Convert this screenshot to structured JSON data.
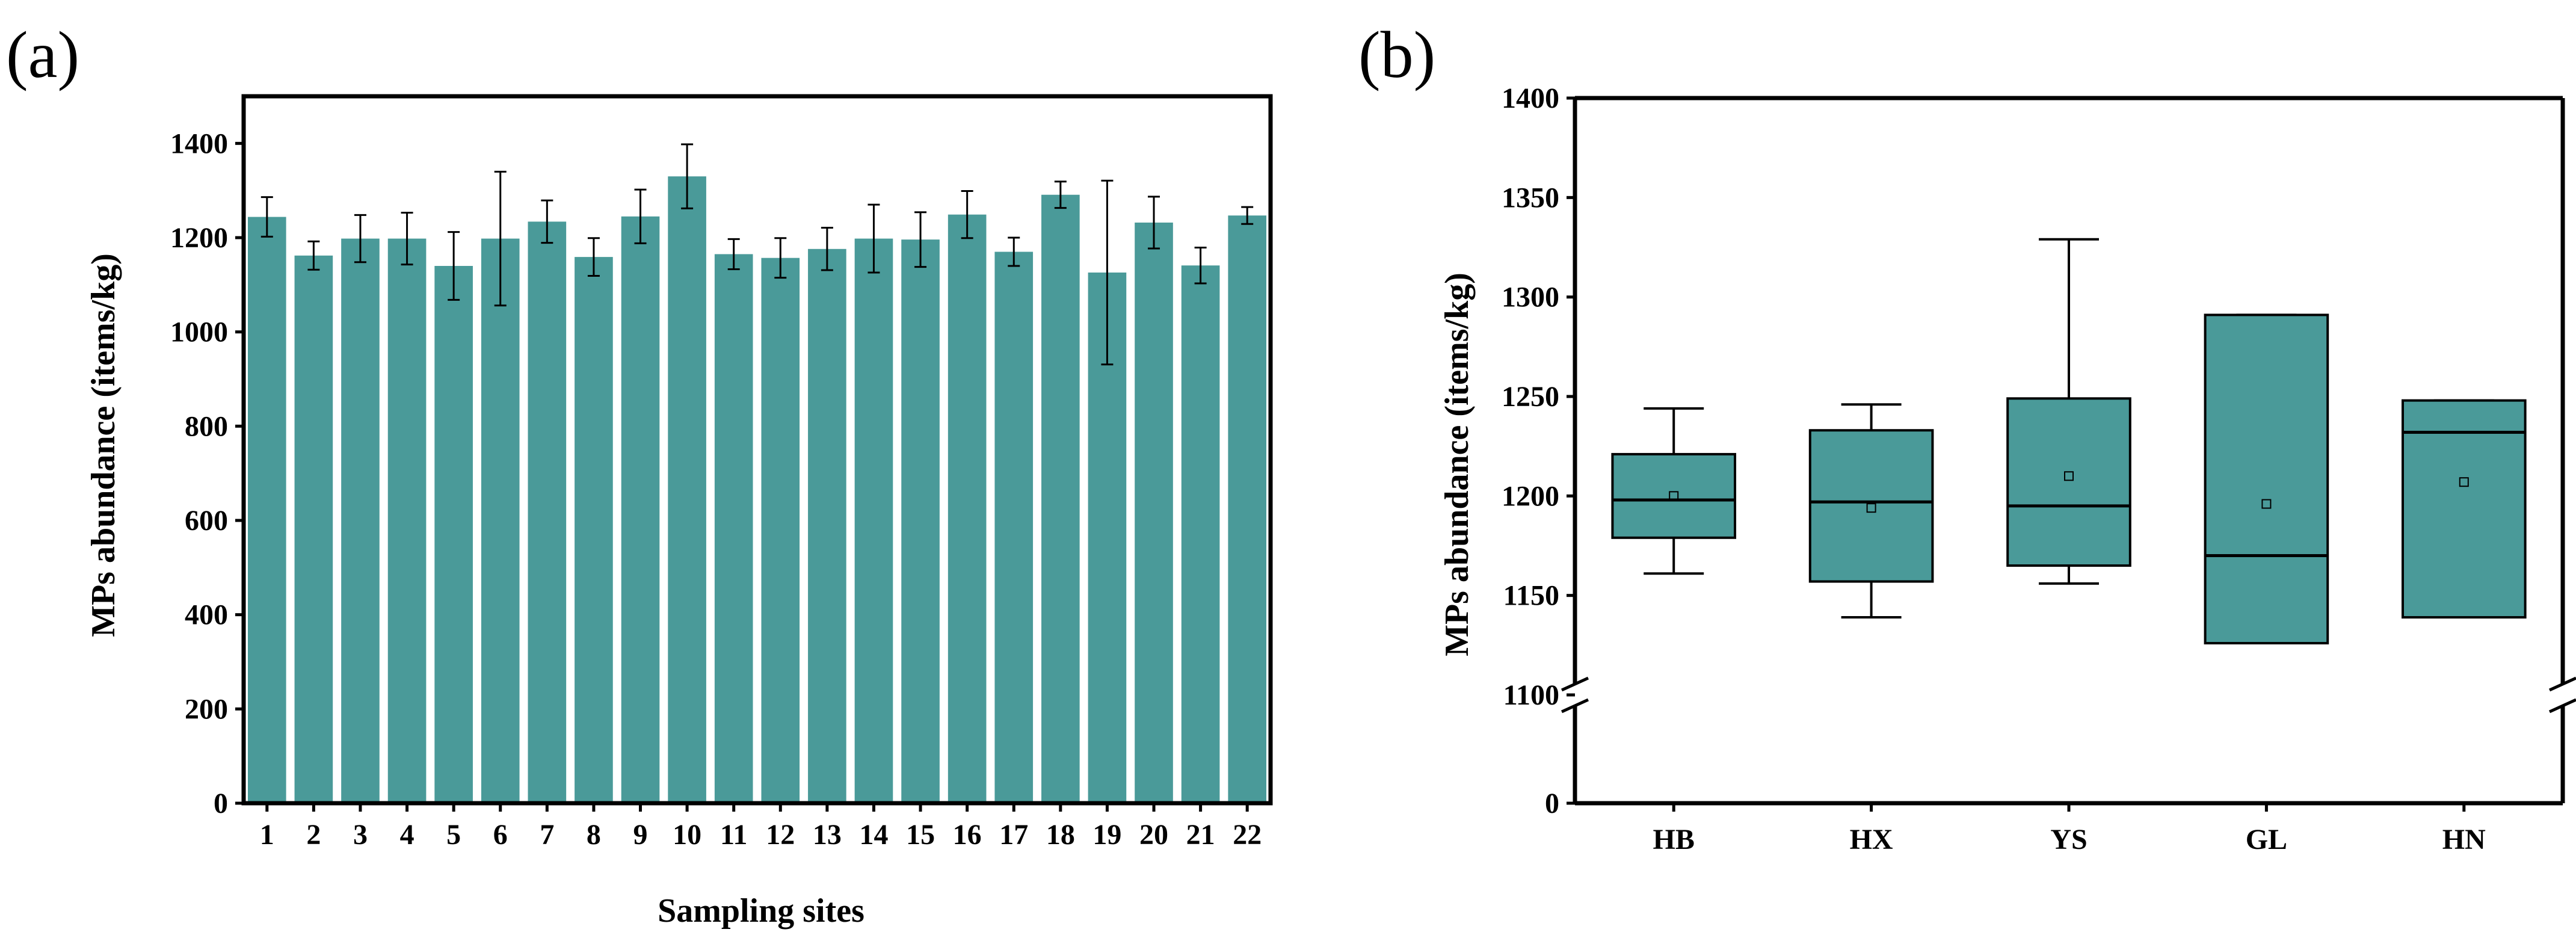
{
  "colors": {
    "bar_fill": "#4a9a99",
    "axis": "#000000",
    "background": "#ffffff"
  },
  "chart_data": [
    {
      "panel_label": "(a)",
      "type": "bar",
      "xlabel": "Sampling sites",
      "ylabel": "MPs abundance (items/kg)",
      "ylim": [
        0,
        1500
      ],
      "yticks": [
        0,
        200,
        400,
        600,
        800,
        1000,
        1200,
        1400
      ],
      "categories": [
        "1",
        "2",
        "3",
        "4",
        "5",
        "6",
        "7",
        "8",
        "9",
        "10",
        "11",
        "12",
        "13",
        "14",
        "15",
        "16",
        "17",
        "18",
        "19",
        "20",
        "21",
        "22"
      ],
      "values": [
        1244,
        1162,
        1198,
        1198,
        1140,
        1198,
        1234,
        1159,
        1245,
        1330,
        1165,
        1157,
        1176,
        1198,
        1196,
        1249,
        1170,
        1291,
        1126,
        1232,
        1141,
        1247
      ],
      "errors": [
        42,
        30,
        50,
        55,
        72,
        142,
        45,
        40,
        57,
        68,
        32,
        42,
        45,
        72,
        58,
        50,
        30,
        28,
        195,
        55,
        38,
        18
      ],
      "grid": false
    },
    {
      "panel_label": "(b)",
      "type": "box",
      "xlabel": "",
      "ylabel": "MPs abundance (items/kg)",
      "yticks": [
        0,
        1100,
        1150,
        1200,
        1250,
        1300,
        1350,
        1400
      ],
      "axis_break": [
        0,
        1100
      ],
      "categories": [
        "HB",
        "HX",
        "YS",
        "GL",
        "HN"
      ],
      "boxes": [
        {
          "name": "HB",
          "whisker_low": 1161,
          "q1": 1179,
          "median": 1198,
          "q3": 1221,
          "whisker_high": 1244,
          "mean": 1200
        },
        {
          "name": "HX",
          "whisker_low": 1139,
          "q1": 1157,
          "median": 1197,
          "q3": 1233,
          "whisker_high": 1246,
          "mean": 1194
        },
        {
          "name": "YS",
          "whisker_low": 1156,
          "q1": 1165,
          "median": 1195,
          "q3": 1249,
          "whisker_high": 1329,
          "mean": 1210
        },
        {
          "name": "GL",
          "whisker_low": 1126,
          "q1": 1126,
          "median": 1170,
          "q3": 1291,
          "whisker_high": 1291,
          "mean": 1196
        },
        {
          "name": "HN",
          "whisker_low": 1139,
          "q1": 1139,
          "median": 1232,
          "q3": 1248,
          "whisker_high": 1248,
          "mean": 1207
        }
      ],
      "grid": false
    }
  ]
}
